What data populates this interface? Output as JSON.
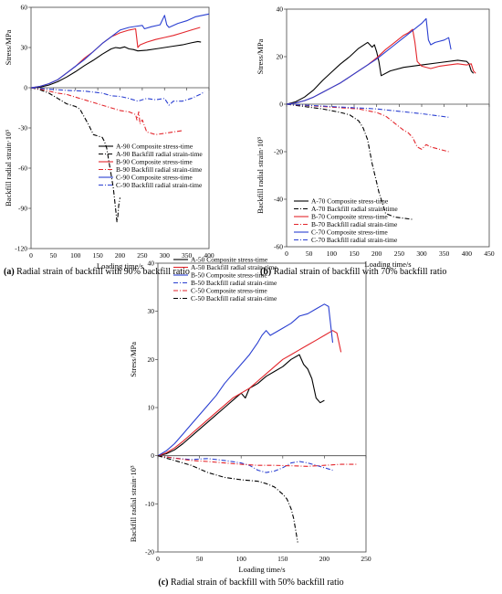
{
  "captions": [
    {
      "tag": "(a)",
      "text": "Radial strain of backfill with 90% backfill ratio"
    },
    {
      "tag": "(b)",
      "text": "Radial strain of backfill with 70% backfill ratio"
    },
    {
      "tag": "(c)",
      "text": "Radial strain of backfill with 50% backfill ratio"
    }
  ],
  "chart_data": [
    {
      "type": "line",
      "xlabel": "Loading time/s",
      "ylabel_top": "Stress/MPa",
      "ylabel_bottom": "Backfill radial strain·10³",
      "xlim": [
        0,
        400
      ],
      "ylim": [
        -120,
        60
      ],
      "xticks": [
        0,
        50,
        100,
        150,
        200,
        250,
        300,
        350,
        400
      ],
      "yticks": [
        60,
        30,
        0,
        -30,
        -60,
        -90,
        -120
      ],
      "legend_position": "lower-center",
      "series": [
        {
          "name": "A-90 Composite stress-time",
          "color": "#000000",
          "dash": "solid",
          "x": [
            0,
            20,
            40,
            60,
            80,
            100,
            120,
            140,
            160,
            180,
            190,
            200,
            210,
            220,
            230,
            240,
            260,
            280,
            300,
            320,
            340,
            360,
            375,
            382
          ],
          "y": [
            0,
            0.5,
            2,
            4.5,
            8,
            12,
            16.5,
            20.5,
            25,
            29,
            30,
            29.5,
            30.5,
            29,
            28.5,
            27.5,
            28,
            29,
            30,
            31,
            32,
            33.5,
            34.5,
            34
          ]
        },
        {
          "name": "A-90 Backfill radial strain-time",
          "color": "#000000",
          "dash": "dashdot",
          "x": [
            0,
            20,
            40,
            60,
            80,
            100,
            110,
            120,
            130,
            140,
            150,
            160,
            165,
            170,
            175,
            180,
            185,
            190,
            193,
            195,
            197,
            200
          ],
          "y": [
            0,
            -1.5,
            -4,
            -8,
            -12,
            -14,
            -16,
            -22,
            -28,
            -35,
            -36,
            -37,
            -40,
            -45,
            -55,
            -65,
            -75,
            -90,
            -100,
            -96,
            -88,
            -82
          ]
        },
        {
          "name": "B-90 Composite stress-time",
          "color": "#e3262c",
          "dash": "solid",
          "x": [
            0,
            20,
            40,
            60,
            80,
            100,
            120,
            140,
            160,
            180,
            200,
            220,
            235,
            240,
            245,
            260,
            280,
            300,
            320,
            340,
            360,
            380
          ],
          "y": [
            0,
            1,
            3,
            6,
            11,
            16,
            22,
            27,
            33,
            38,
            41,
            43,
            44,
            30,
            32,
            34,
            36,
            37.5,
            39,
            41,
            43,
            45
          ]
        },
        {
          "name": "B-90 Backfill radial strain-time",
          "color": "#e3262c",
          "dash": "dashdot",
          "x": [
            0,
            20,
            40,
            60,
            80,
            100,
            120,
            140,
            160,
            180,
            200,
            220,
            235,
            238,
            242,
            245,
            250,
            260,
            280,
            300,
            320,
            340
          ],
          "y": [
            0,
            -1,
            -2.5,
            -4,
            -5,
            -7,
            -9,
            -11,
            -13,
            -15,
            -17,
            -18,
            -20,
            -24,
            -18,
            -27,
            -24,
            -33,
            -35,
            -34,
            -33,
            -32
          ]
        },
        {
          "name": "C-90 Composite stress-time",
          "color": "#2a3fd1",
          "dash": "solid",
          "x": [
            0,
            20,
            40,
            60,
            80,
            100,
            120,
            140,
            160,
            180,
            200,
            220,
            240,
            250,
            255,
            270,
            290,
            300,
            305,
            310,
            330,
            350,
            370,
            400
          ],
          "y": [
            0,
            1,
            3,
            6,
            11,
            16,
            21,
            27,
            33,
            38,
            43,
            45,
            46,
            46.5,
            44,
            45.5,
            47,
            54,
            47,
            45,
            48,
            50,
            53,
            55
          ]
        },
        {
          "name": "C-90 Backfill radial strain-time",
          "color": "#2a3fd1",
          "dash": "dashdot",
          "x": [
            0,
            40,
            80,
            120,
            160,
            180,
            200,
            220,
            240,
            260,
            280,
            300,
            310,
            320,
            340,
            360,
            380,
            390
          ],
          "y": [
            0,
            -1,
            -2,
            -2.5,
            -4,
            -6,
            -6.5,
            -8,
            -10,
            -8,
            -9,
            -8,
            -13,
            -10,
            -10,
            -8,
            -5,
            -3
          ]
        }
      ]
    },
    {
      "type": "line",
      "xlabel": "Loading time/s",
      "ylabel_top": "Stress/MPa",
      "ylabel_bottom": "Backfill radial strain·10³",
      "xlim": [
        0,
        450
      ],
      "ylim": [
        -60,
        40
      ],
      "xticks": [
        0,
        50,
        100,
        150,
        200,
        250,
        300,
        350,
        400,
        450
      ],
      "yticks": [
        40,
        20,
        0,
        -20,
        -40,
        -60
      ],
      "legend_position": "lower-left",
      "series": [
        {
          "name": "A-70 Composite stress-time",
          "color": "#000000",
          "dash": "solid",
          "x": [
            0,
            20,
            40,
            60,
            80,
            100,
            120,
            140,
            160,
            180,
            185,
            190,
            195,
            200,
            205,
            210,
            230,
            260,
            300,
            340,
            380,
            400,
            405,
            410,
            415
          ],
          "y": [
            0,
            1,
            3,
            6,
            10,
            13.5,
            17,
            20,
            23.5,
            26,
            25,
            24,
            25,
            22,
            18,
            12,
            14,
            15.5,
            16.5,
            17.5,
            18.5,
            18,
            17,
            14,
            13
          ]
        },
        {
          "name": "A-70 Backfill radial strain-time",
          "color": "#000000",
          "dash": "dashdot",
          "x": [
            0,
            40,
            80,
            120,
            140,
            160,
            170,
            180,
            190,
            200,
            205,
            210,
            215,
            220,
            240,
            260,
            280
          ],
          "y": [
            0,
            -1,
            -2,
            -3.5,
            -4.5,
            -7,
            -10,
            -15,
            -25,
            -33,
            -37,
            -40,
            -43,
            -46,
            -47.5,
            -48,
            -48.5
          ]
        },
        {
          "name": "B-70 Composite stress-time",
          "color": "#e3262c",
          "dash": "solid",
          "x": [
            0,
            20,
            40,
            60,
            80,
            100,
            120,
            140,
            160,
            180,
            200,
            220,
            240,
            260,
            270,
            280,
            285,
            290,
            300,
            320,
            340,
            360,
            380,
            400,
            410,
            415,
            420
          ],
          "y": [
            0,
            0.5,
            1.5,
            3,
            5,
            7,
            9,
            11.5,
            14,
            16.5,
            19.5,
            23,
            26,
            29,
            30,
            31.5,
            26,
            18,
            16,
            15,
            16,
            16.5,
            17,
            16.5,
            17,
            14,
            13
          ]
        },
        {
          "name": "B-70 Backfill radial strain-time",
          "color": "#e3262c",
          "dash": "dashdot",
          "x": [
            0,
            40,
            80,
            120,
            160,
            200,
            220,
            240,
            260,
            270,
            280,
            290,
            300,
            310,
            320,
            340,
            360
          ],
          "y": [
            0,
            -0.5,
            -1,
            -1.5,
            -2,
            -3.5,
            -5,
            -8,
            -11,
            -12,
            -14,
            -18,
            -19,
            -17,
            -18,
            -19,
            -20
          ]
        },
        {
          "name": "C-70 Composite stress-time",
          "color": "#2a3fd1",
          "dash": "solid",
          "x": [
            0,
            20,
            40,
            60,
            80,
            100,
            120,
            140,
            160,
            180,
            200,
            220,
            240,
            260,
            280,
            300,
            310,
            315,
            320,
            330,
            340,
            350,
            360,
            365
          ],
          "y": [
            0,
            0.5,
            1.5,
            3,
            5,
            7,
            9,
            11.5,
            14,
            16.5,
            19,
            22,
            25,
            28,
            31,
            34,
            36,
            27,
            25,
            26,
            26.5,
            27,
            28,
            23
          ]
        },
        {
          "name": "C-70 Backfill radial strain-time",
          "color": "#2a3fd1",
          "dash": "dashdot",
          "x": [
            0,
            50,
            100,
            150,
            200,
            250,
            300,
            340,
            360
          ],
          "y": [
            0,
            -0.5,
            -1,
            -1.5,
            -2,
            -3,
            -4,
            -5,
            -5.5
          ]
        }
      ]
    },
    {
      "type": "line",
      "xlabel": "Loading time/s",
      "ylabel_top": "Stress/MPa",
      "ylabel_bottom": "Backfill radial strain·10³",
      "xlim": [
        0,
        250
      ],
      "ylim": [
        -20,
        40
      ],
      "xticks": [
        0,
        50,
        100,
        150,
        200,
        250
      ],
      "yticks": [
        40,
        30,
        20,
        10,
        0,
        -10,
        -20
      ],
      "legend_position": "top-center",
      "series": [
        {
          "name": "A-50 Composite stress-time",
          "color": "#000000",
          "dash": "solid",
          "x": [
            0,
            10,
            20,
            30,
            40,
            50,
            60,
            70,
            80,
            90,
            100,
            105,
            110,
            120,
            130,
            140,
            150,
            160,
            170,
            175,
            180,
            185,
            190,
            195,
            200
          ],
          "y": [
            0,
            0.4,
            1.2,
            2.5,
            4,
            5.5,
            7,
            8.5,
            10,
            11.5,
            13,
            12,
            14,
            15,
            16.5,
            17.5,
            18.5,
            20,
            21,
            19,
            18,
            16,
            12,
            11,
            11.5
          ]
        },
        {
          "name": "A-50 Backfill radial strain-time",
          "color": "#e3262c",
          "dash": "solid",
          "x": [
            0,
            10,
            20,
            30,
            40,
            50,
            60,
            70,
            80,
            90,
            100,
            110,
            120,
            130,
            140,
            150,
            160,
            170,
            180,
            190,
            200,
            210,
            215,
            220
          ],
          "y": [
            0,
            0.6,
            1.6,
            3,
            4.5,
            6,
            7.5,
            9,
            10.5,
            12,
            13,
            14,
            15.5,
            17,
            18.5,
            20,
            21,
            22,
            23,
            24,
            25,
            26,
            25.5,
            21.5
          ]
        },
        {
          "name": "B-50 Composite stress-time",
          "color": "#2a3fd1",
          "dash": "solid",
          "x": [
            0,
            10,
            20,
            30,
            40,
            50,
            60,
            70,
            80,
            90,
            100,
            110,
            120,
            125,
            130,
            135,
            140,
            150,
            160,
            170,
            180,
            190,
            200,
            205,
            210
          ],
          "y": [
            0,
            1,
            2.5,
            4.5,
            6.5,
            8.5,
            10.5,
            12.5,
            15,
            17,
            19,
            21,
            23.5,
            25,
            26,
            25,
            25.5,
            26.5,
            27.5,
            29,
            29.5,
            30.5,
            31.5,
            31,
            23.5
          ]
        },
        {
          "name": "B-50 Backfill radial strain-time",
          "color": "#2a3fd1",
          "dash": "dashdot",
          "x": [
            0,
            20,
            40,
            60,
            80,
            100,
            110,
            120,
            130,
            140,
            150,
            160,
            170,
            180,
            190,
            200,
            210
          ],
          "y": [
            0,
            -0.5,
            -0.8,
            -0.6,
            -1,
            -1.5,
            -2,
            -3,
            -3.5,
            -3.2,
            -2.5,
            -1.5,
            -1.2,
            -1.5,
            -2,
            -2.5,
            -3
          ]
        },
        {
          "name": "C-50 Composite stress-time",
          "color": "#e3262c",
          "dash": "dashdot",
          "x": [
            0,
            20,
            40,
            60,
            80,
            100,
            120,
            140,
            160,
            180,
            200,
            220,
            240
          ],
          "y": [
            0,
            -0.5,
            -1,
            -1.2,
            -1.5,
            -1.8,
            -2,
            -2,
            -2.1,
            -2.2,
            -2,
            -1.8,
            -1.8
          ]
        },
        {
          "name": "C-50 Backfill radial strain-time",
          "color": "#000000",
          "dash": "dashdot",
          "x": [
            0,
            20,
            40,
            60,
            80,
            100,
            120,
            130,
            140,
            150,
            155,
            160,
            163,
            166,
            168
          ],
          "y": [
            0,
            -1,
            -2,
            -3.5,
            -4.5,
            -5,
            -5.3,
            -5.8,
            -6.5,
            -8,
            -9,
            -11,
            -13,
            -16,
            -18
          ]
        }
      ]
    }
  ]
}
